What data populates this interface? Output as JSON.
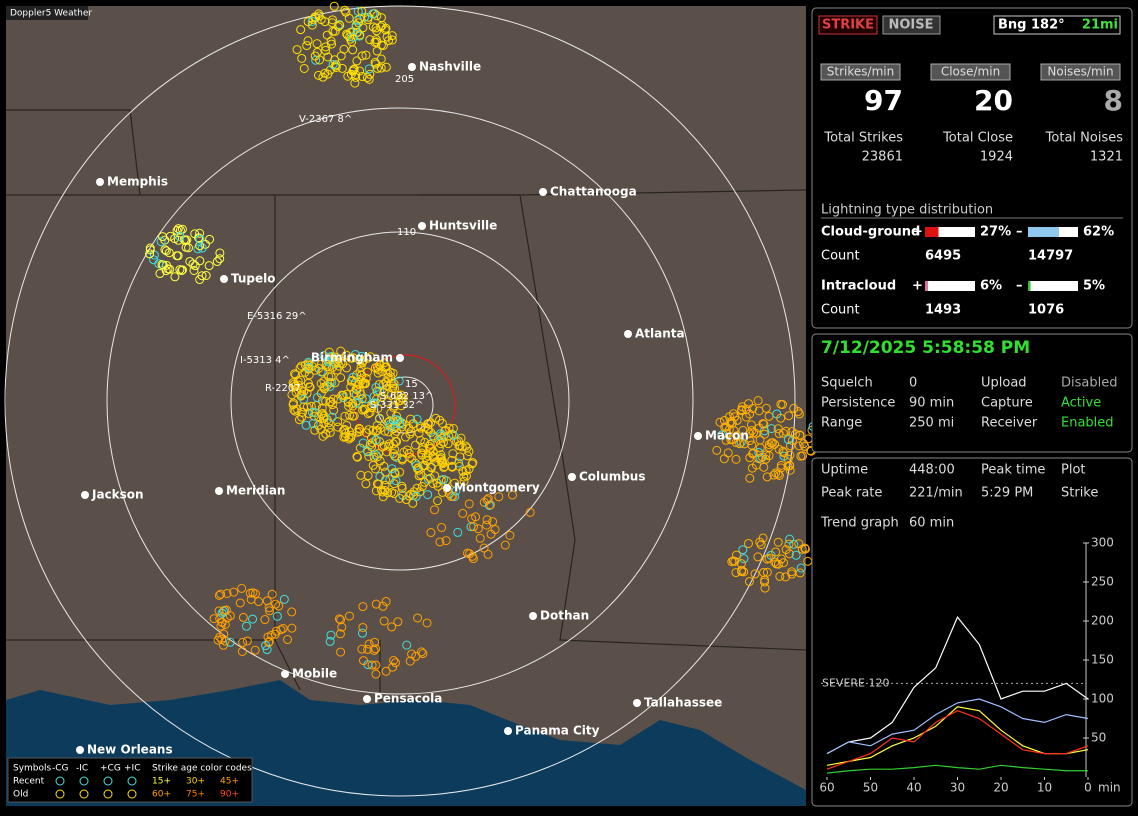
{
  "app_title": "Doppler5 Weather",
  "map": {
    "cities": [
      "Nashville",
      "Memphis",
      "Chattanooga",
      "Huntsville",
      "Tupelo",
      "Birmingham",
      "Atlanta",
      "Macon",
      "Columbus",
      "Montgomery",
      "Jackson",
      "Meridian",
      "Dothan",
      "Mobile",
      "Pensacola",
      "Tallahassee",
      "Panama City",
      "New Orleans"
    ],
    "ring_labels": [
      "205",
      "110",
      "15"
    ],
    "storm_labels": [
      "V-2367 8^",
      "E-5316 29^",
      "I-5313 4^",
      "R-2207",
      "S-632 13^",
      "S-331 32^"
    ]
  },
  "legend": {
    "symbols_header": "Symbols",
    "types": [
      "-CG",
      "-IC",
      "+CG",
      "+IC"
    ],
    "age_header": "Strike age color codes",
    "rows": [
      {
        "label": "Recent",
        "ages": [
          "15+",
          "30+",
          "45+"
        ]
      },
      {
        "label": "Old",
        "ages": [
          "60+",
          "75+",
          "90+"
        ]
      }
    ]
  },
  "status": {
    "strike": "STRIKE",
    "noise": "NOISE",
    "bearing": "Bng 182°",
    "distance": "21mi"
  },
  "rates": [
    {
      "label": "Strikes/min",
      "value": 97,
      "total_label": "Total Strikes",
      "total": 23861
    },
    {
      "label": "Close/min",
      "value": 20,
      "total_label": "Total Close",
      "total": 1924
    },
    {
      "label": "Noises/min",
      "value": 8,
      "total_label": "Total Noises",
      "total": 1321
    }
  ],
  "distribution": {
    "title": "Lightning type distribution",
    "rows": [
      {
        "label": "Cloud-ground",
        "pos_sign": "+",
        "pos_pct": 27,
        "pos_pct_label": "27%",
        "neg_sign": "–",
        "neg_pct": 62,
        "neg_pct_label": "62%",
        "count_label": "Count",
        "pos_count": 6495,
        "neg_count": 14797
      },
      {
        "label": "Intracloud",
        "pos_sign": "+",
        "pos_pct": 6,
        "pos_pct_label": "6%",
        "neg_sign": "–",
        "neg_pct": 5,
        "neg_pct_label": "5%",
        "count_label": "Count",
        "pos_count": 1493,
        "neg_count": 1076
      }
    ]
  },
  "clock": "7/12/2025 5:58:58 PM",
  "settings": [
    [
      "Squelch",
      "0",
      "Upload",
      "Disabled"
    ],
    [
      "Persistence",
      "90 min",
      "Capture",
      "Active"
    ],
    [
      "Range",
      "250 mi",
      "Receiver",
      "Enabled"
    ]
  ],
  "stats": [
    [
      "Uptime",
      "448:00",
      "Peak time",
      "Plot"
    ],
    [
      "Peak rate",
      "221/min",
      "5:29 PM",
      "Strike"
    ],
    [
      "Trend graph",
      "60 min"
    ]
  ],
  "trend": {
    "type": "line",
    "x": [
      60,
      55,
      50,
      45,
      40,
      35,
      30,
      25,
      20,
      15,
      10,
      5,
      0
    ],
    "xlim": [
      60,
      0
    ],
    "xticks": [
      60,
      50,
      40,
      30,
      20,
      10,
      0
    ],
    "x_unit": "min",
    "ylim": [
      0,
      300
    ],
    "yticks": [
      50,
      100,
      150,
      200,
      250,
      300
    ],
    "severe": {
      "label": "SEVERE 120",
      "value": 120
    },
    "series": [
      {
        "color": "#ffffff",
        "values": [
          30,
          45,
          50,
          70,
          115,
          140,
          205,
          170,
          100,
          110,
          110,
          120,
          100
        ]
      },
      {
        "color": "#9fbfff",
        "values": [
          30,
          45,
          40,
          55,
          60,
          80,
          95,
          100,
          90,
          75,
          70,
          80,
          75
        ]
      },
      {
        "color": "#ffff40",
        "values": [
          15,
          20,
          25,
          40,
          50,
          65,
          90,
          85,
          60,
          40,
          30,
          30,
          35
        ]
      },
      {
        "color": "#ff3020",
        "values": [
          10,
          20,
          30,
          50,
          45,
          70,
          85,
          75,
          55,
          35,
          30,
          30,
          40
        ]
      },
      {
        "color": "#30d030",
        "values": [
          5,
          8,
          10,
          10,
          12,
          15,
          12,
          10,
          15,
          12,
          10,
          8,
          8
        ]
      }
    ]
  }
}
